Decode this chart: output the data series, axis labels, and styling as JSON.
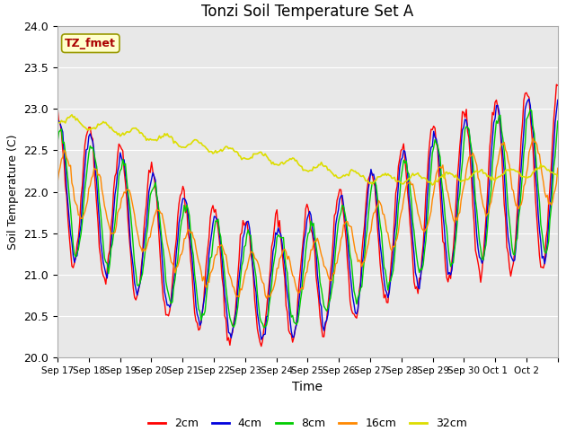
{
  "title": "Tonzi Soil Temperature Set A",
  "xlabel": "Time",
  "ylabel": "Soil Temperature (C)",
  "annotation": "TZ_fmet",
  "ylim": [
    20.0,
    24.0
  ],
  "yticks": [
    20.0,
    20.5,
    21.0,
    21.5,
    22.0,
    22.5,
    23.0,
    23.5,
    24.0
  ],
  "series_labels": [
    "2cm",
    "4cm",
    "8cm",
    "16cm",
    "32cm"
  ],
  "series_colors": [
    "#ff0000",
    "#0000dd",
    "#00cc00",
    "#ff8800",
    "#dddd00"
  ],
  "bg_color": "#e8e8e8",
  "xtick_labels": [
    "Sep 17",
    "Sep 18",
    "Sep 19",
    "Sep 20",
    "Sep 21",
    "Sep 22",
    "Sep 23",
    "Sep 24",
    "Sep 25",
    "Sep 26",
    "Sep 27",
    "Sep 28",
    "Sep 29",
    "Sep 30",
    "Oct 1",
    "Oct 2"
  ]
}
